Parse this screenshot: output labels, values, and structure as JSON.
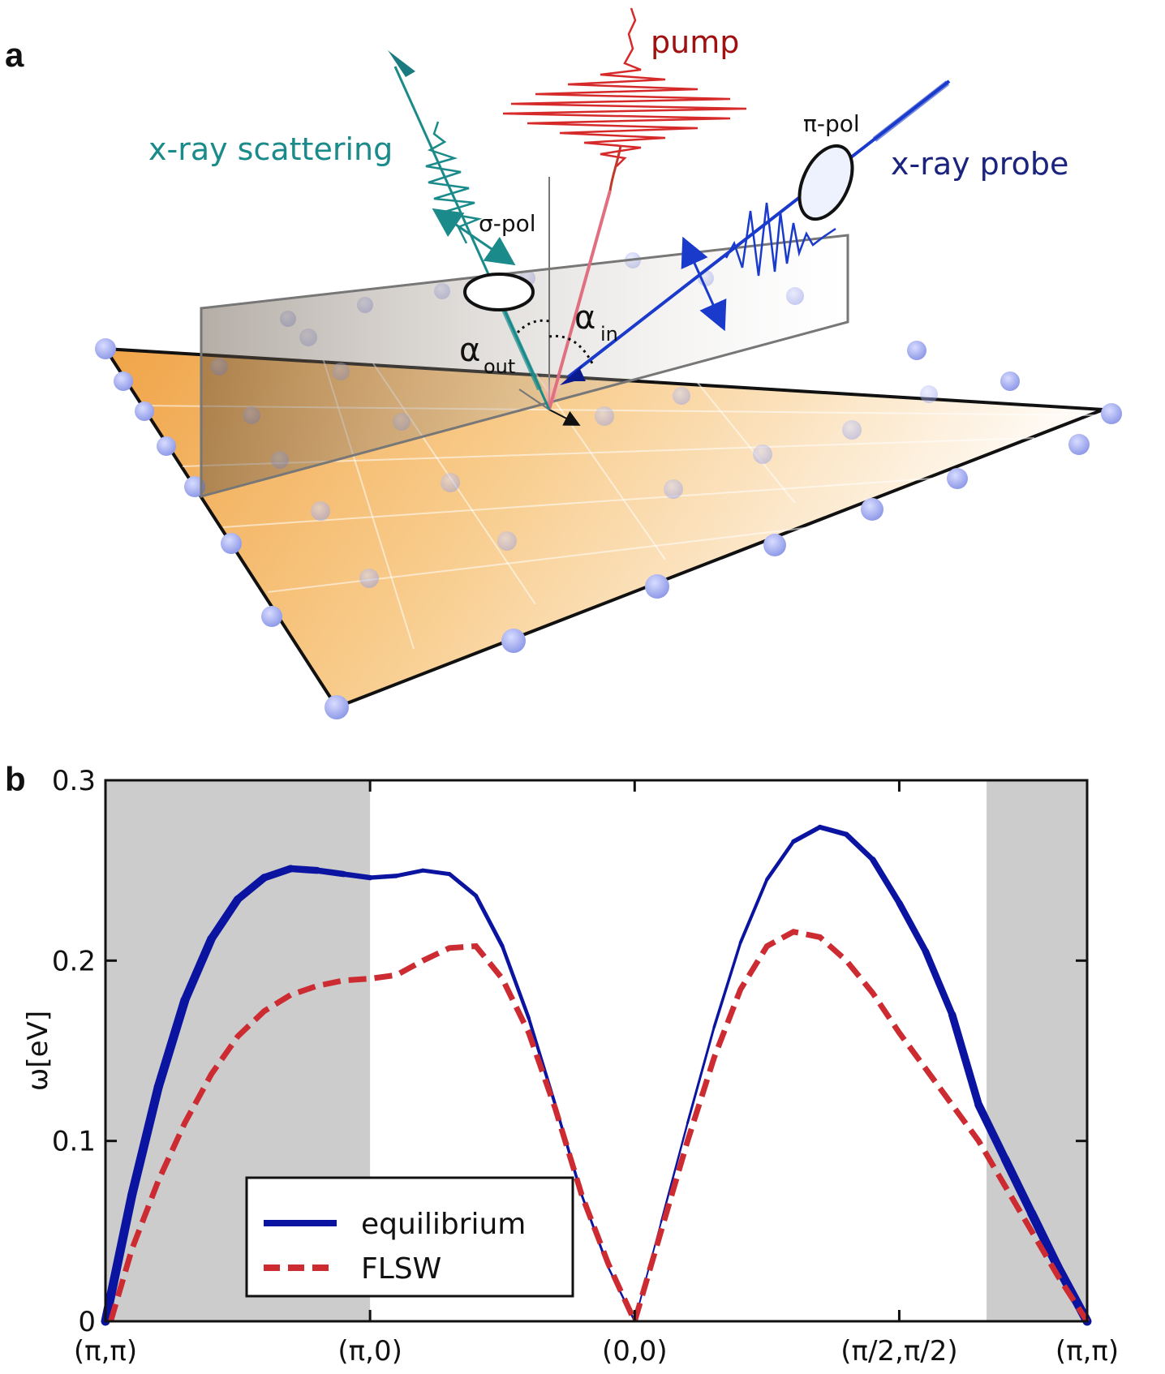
{
  "panel_a": {
    "label": "a",
    "labels": {
      "pump": "pump",
      "scattering": "x-ray scattering",
      "probe": "x-ray probe",
      "sigma_pol": "σ-pol",
      "pi_pol": "π-pol",
      "alpha_out": "α",
      "alpha_out_sub": "out",
      "alpha_in": "α",
      "alpha_in_sub": "in"
    },
    "colors": {
      "pump": "#c0392b",
      "pump_label": "#a01010",
      "scattering": "#1a8a8a",
      "probe": "#1a3acc",
      "probe_label": "#1a237e",
      "surface": "#f3a64a"
    }
  },
  "panel_b": {
    "label": "b",
    "shaded_regions": [
      [
        0,
        1
      ],
      [
        3.33,
        3.71
      ]
    ],
    "shade_color": "#cccccc",
    "chart_data": {
      "type": "line",
      "xlabel": "",
      "ylabel": "ω[eV]",
      "xlim": [
        0,
        3.71
      ],
      "ylim": [
        0,
        0.3
      ],
      "yticks": [
        0,
        0.1,
        0.2,
        0.3
      ],
      "ytick_labels": [
        "0",
        "0.1",
        "0.2",
        "0.3"
      ],
      "xticks": [
        0,
        1,
        2,
        3,
        3.71
      ],
      "xtick_labels": [
        "(π,π)",
        "(π,0)",
        "(0,0)",
        "(π/2,π/2)",
        "(π,π)"
      ],
      "legend_position": "lower-left",
      "series": [
        {
          "name": "equilibrium",
          "color": "#0a14a0",
          "style": "solid",
          "x": [
            0,
            0.1,
            0.2,
            0.3,
            0.4,
            0.5,
            0.6,
            0.7,
            0.8,
            0.9,
            1.0,
            1.1,
            1.2,
            1.3,
            1.4,
            1.5,
            1.6,
            1.7,
            1.8,
            1.9,
            2.0,
            2.1,
            2.2,
            2.3,
            2.4,
            2.5,
            2.6,
            2.7,
            2.8,
            2.9,
            3.0,
            3.1,
            3.2,
            3.3,
            3.4,
            3.5,
            3.6,
            3.71
          ],
          "y": [
            0,
            0.07,
            0.13,
            0.178,
            0.212,
            0.234,
            0.246,
            0.251,
            0.25,
            0.248,
            0.246,
            0.247,
            0.25,
            0.248,
            0.236,
            0.208,
            0.168,
            0.12,
            0.07,
            0.03,
            0,
            0.055,
            0.11,
            0.163,
            0.21,
            0.245,
            0.266,
            0.274,
            0.27,
            0.256,
            0.232,
            0.205,
            0.17,
            0.12,
            0.09,
            0.06,
            0.03,
            0
          ],
          "linewidth": [
            11,
            11,
            11,
            11,
            10,
            10,
            9,
            9,
            8,
            7,
            6,
            5,
            5,
            5,
            5,
            5,
            4,
            4,
            3,
            3,
            2,
            2,
            3,
            3,
            4,
            4,
            5,
            6,
            6,
            7,
            8,
            8,
            9,
            10,
            10,
            11,
            11,
            11
          ]
        },
        {
          "name": "FLSW",
          "color": "#cd2b32",
          "style": "dashed",
          "x": [
            0.02,
            0.1,
            0.2,
            0.3,
            0.4,
            0.5,
            0.6,
            0.7,
            0.8,
            0.9,
            1.0,
            1.1,
            1.2,
            1.3,
            1.4,
            1.5,
            1.6,
            1.7,
            1.8,
            1.9,
            2.0,
            2.1,
            2.2,
            2.3,
            2.4,
            2.5,
            2.6,
            2.7,
            2.8,
            2.9,
            3.0,
            3.1,
            3.2,
            3.3,
            3.4,
            3.5,
            3.6,
            3.71
          ],
          "y": [
            0,
            0.04,
            0.078,
            0.11,
            0.137,
            0.158,
            0.172,
            0.181,
            0.186,
            0.189,
            0.19,
            0.192,
            0.2,
            0.207,
            0.208,
            0.19,
            0.16,
            0.118,
            0.07,
            0.032,
            0,
            0.05,
            0.1,
            0.146,
            0.184,
            0.208,
            0.216,
            0.213,
            0.2,
            0.182,
            0.16,
            0.14,
            0.12,
            0.1,
            0.075,
            0.05,
            0.025,
            0
          ]
        }
      ]
    }
  }
}
